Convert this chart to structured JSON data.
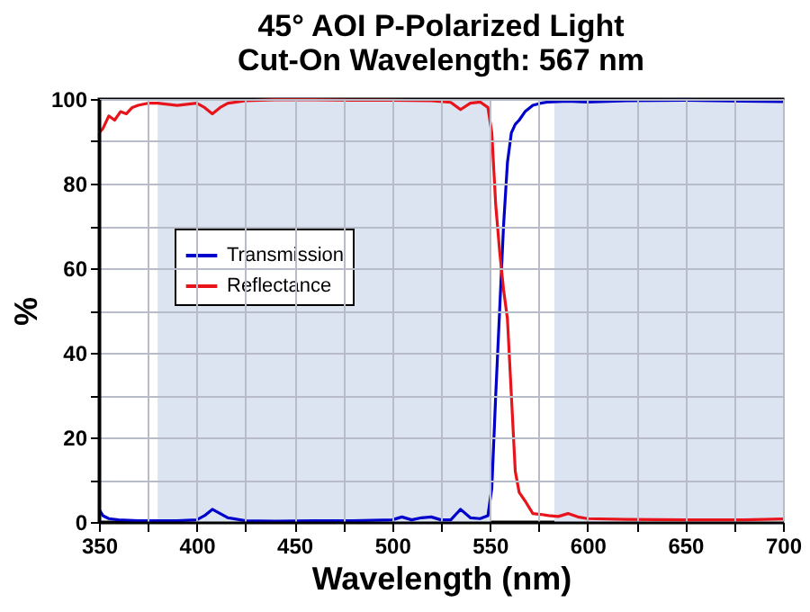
{
  "chart_data": {
    "type": "line",
    "title": "45° AOI P-Polarized Light",
    "subtitle": "Cut-On Wavelength: 567 nm",
    "xlabel": "Wavelength (nm)",
    "ylabel": "%",
    "series": [
      {
        "name": "Transmission",
        "color": "#0000cc",
        "x": [
          350,
          352,
          355,
          360,
          370,
          380,
          390,
          400,
          404,
          408,
          412,
          416,
          425,
          440,
          460,
          480,
          500,
          505,
          510,
          515,
          520,
          525,
          530,
          535,
          540,
          545,
          549,
          551,
          553,
          555,
          557,
          559,
          561,
          563,
          565,
          568,
          572,
          576,
          580,
          590,
          600,
          620,
          650,
          680,
          700
        ],
        "values": [
          3,
          1.5,
          0.8,
          0.5,
          0.3,
          0.3,
          0.3,
          0.5,
          1.5,
          3,
          2,
          1,
          0.3,
          0.2,
          0.3,
          0.3,
          0.5,
          1.2,
          0.5,
          1,
          1.2,
          0.5,
          0.5,
          3,
          1,
          0.8,
          1.5,
          8,
          30,
          50,
          70,
          85,
          92,
          94,
          95,
          97,
          98.5,
          99,
          99.3,
          99.5,
          99.3,
          99.6,
          99.7,
          99.5,
          99.4
        ]
      },
      {
        "name": "Reflectance",
        "color": "#e8141c",
        "x": [
          350,
          352,
          355,
          358,
          361,
          364,
          367,
          370,
          375,
          380,
          390,
          400,
          404,
          408,
          412,
          416,
          425,
          440,
          460,
          480,
          500,
          520,
          530,
          535,
          540,
          545,
          549,
          551,
          553,
          555,
          557,
          559,
          561,
          563,
          565,
          568,
          572,
          576,
          580,
          585,
          590,
          595,
          600,
          620,
          650,
          680,
          700
        ],
        "values": [
          92,
          93,
          96,
          95,
          97,
          96.5,
          98,
          98.5,
          99,
          99,
          98.5,
          99,
          98,
          96.5,
          98,
          99,
          99.6,
          99.8,
          99.8,
          99.7,
          99.7,
          99.6,
          99.2,
          97.5,
          99,
          99.3,
          98,
          92,
          75,
          64,
          55,
          48,
          30,
          12,
          7,
          5,
          2,
          1.8,
          1.5,
          1.3,
          2,
          1.2,
          0.8,
          0.6,
          0.5,
          0.5,
          0.7
        ]
      }
    ],
    "xlim": [
      350,
      700
    ],
    "ylim": [
      0,
      100
    ],
    "xticks": [
      350,
      {
        "value": 375,
        "label": null
      },
      400,
      {
        "value": 425,
        "label": null
      },
      450,
      {
        "value": 475,
        "label": null
      },
      500,
      {
        "value": 525,
        "label": null
      },
      550,
      {
        "value": 575,
        "label": null
      },
      600,
      {
        "value": 625,
        "label": null
      },
      650,
      {
        "value": 675,
        "label": null
      },
      700
    ],
    "yticks": [
      0,
      {
        "value": 10,
        "label": null
      },
      20,
      {
        "value": 30,
        "label": null
      },
      40,
      {
        "value": 50,
        "label": null
      },
      60,
      {
        "value": 70,
        "label": null
      },
      80,
      {
        "value": 90,
        "label": null
      },
      100
    ],
    "bands": [
      {
        "axis": "x",
        "from": 380,
        "to": 550,
        "color": "#dce4f2"
      },
      {
        "axis": "x",
        "from": 583,
        "to": 700,
        "color": "#dce4f2"
      }
    ],
    "grid": true,
    "legend": "left",
    "line_style": "solid"
  }
}
